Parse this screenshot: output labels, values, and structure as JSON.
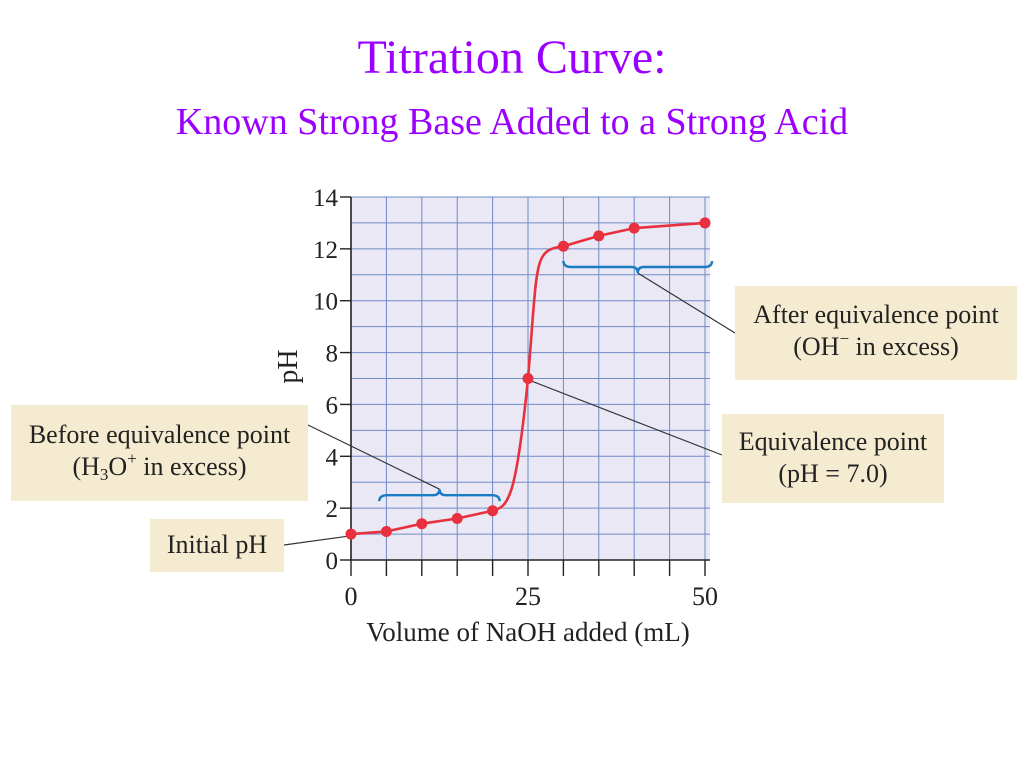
{
  "colors": {
    "title": "#9b00ff",
    "plot_bg": "#e9e8f4",
    "grid": "#6f8bc8",
    "curve": "#e8303e",
    "brace": "#1a7ac2",
    "callout_bg": "#f4ebd0",
    "leader": "#333333"
  },
  "slide": {
    "title": "Titration Curve:",
    "subtitle": "Known Strong Base Added to a Strong Acid"
  },
  "chart_data": {
    "type": "line",
    "xlabel": "Volume of NaOH added (mL)",
    "ylabel": "pH",
    "xlim": [
      0,
      50
    ],
    "ylim": [
      0,
      14
    ],
    "x_ticks": [
      0,
      25,
      50
    ],
    "y_ticks": [
      0,
      2,
      4,
      6,
      8,
      10,
      12,
      14
    ],
    "x_minor_step": 5,
    "grid": true,
    "series": [
      {
        "points": [
          {
            "x": 0,
            "y": 1.0
          },
          {
            "x": 5,
            "y": 1.1
          },
          {
            "x": 10,
            "y": 1.4
          },
          {
            "x": 15,
            "y": 1.6
          },
          {
            "x": 20,
            "y": 1.9
          },
          {
            "x": 25,
            "y": 7.0
          },
          {
            "x": 30,
            "y": 12.1
          },
          {
            "x": 35,
            "y": 12.5
          },
          {
            "x": 40,
            "y": 12.8
          },
          {
            "x": 50,
            "y": 13.0
          }
        ]
      }
    ],
    "annotations": {
      "initial": {
        "line1": "Initial pH"
      },
      "before": {
        "line1": "Before equivalence point",
        "line2_pre": "(H",
        "line2_sub": "3",
        "line2_mid": "O",
        "line2_sup": "+",
        "line2_post": " in excess)"
      },
      "equivalence": {
        "line1": "Equivalence point",
        "line2": "(pH = 7.0)"
      },
      "after": {
        "line1": "After equivalence point",
        "line2_pre": "(OH",
        "line2_sup": "−",
        "line2_post": " in excess)"
      }
    },
    "braces": [
      {
        "x_from": 4,
        "x_to": 21,
        "y": 2.5,
        "direction": "up",
        "target": "before"
      },
      {
        "x_from": 30,
        "x_to": 51,
        "y": 11.3,
        "direction": "down",
        "target": "after"
      }
    ]
  }
}
